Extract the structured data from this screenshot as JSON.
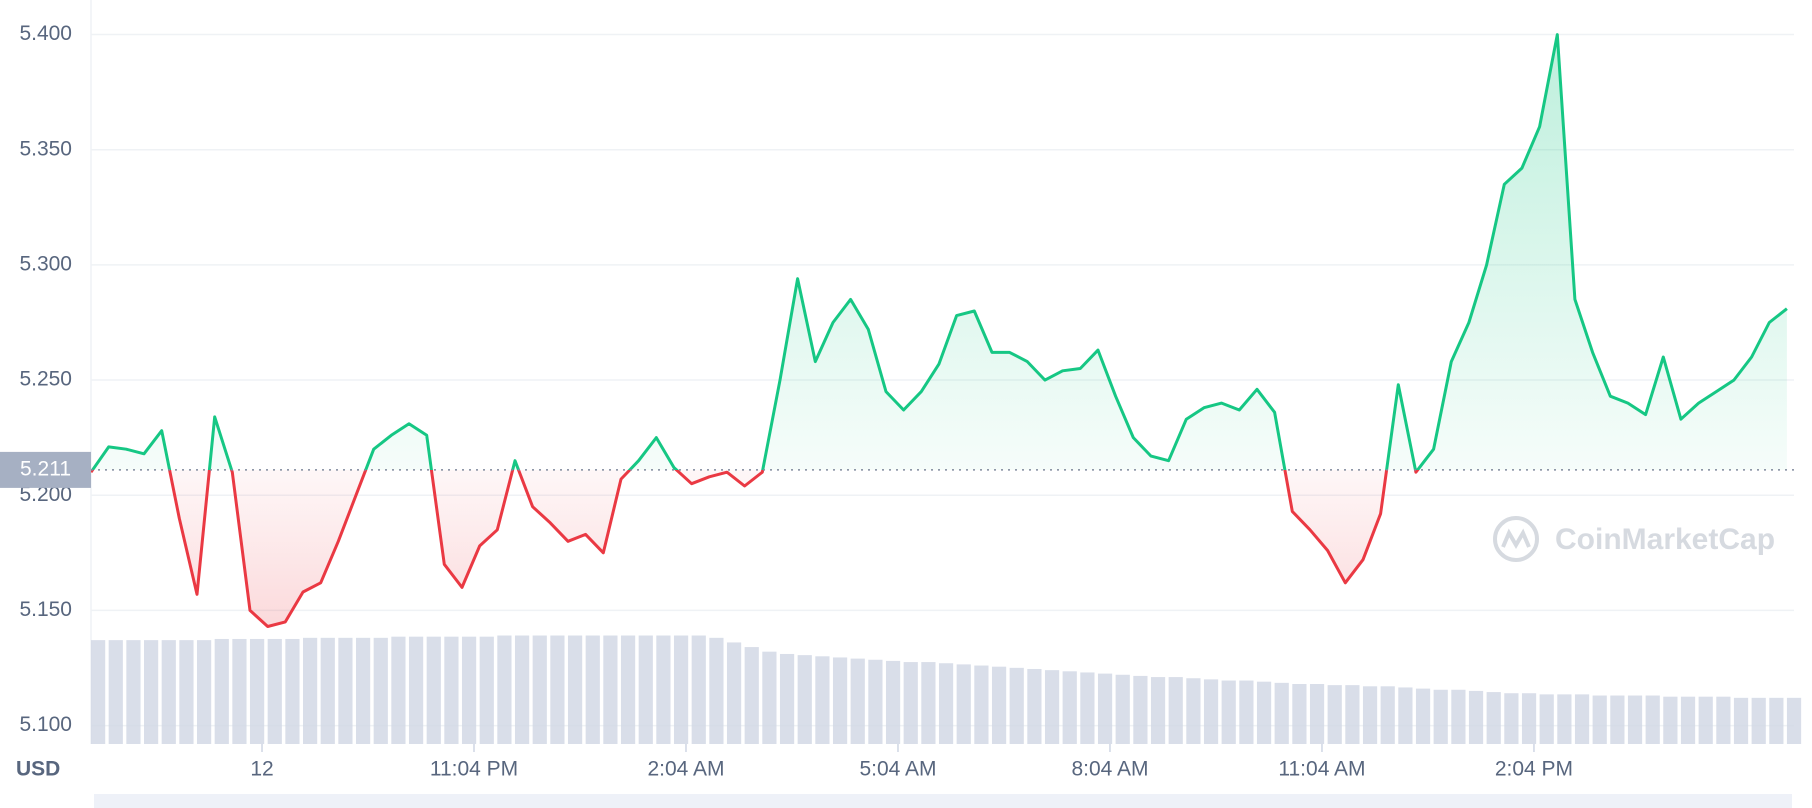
{
  "chart_data": {
    "type": "line",
    "currency": "USD",
    "watermark": "CoinMarketCap",
    "reference": {
      "value": 5.211,
      "label": "5.211"
    },
    "up_color": "#16c784",
    "down_color": "#ea3943",
    "volume_color": "#cfd6e4",
    "grid": true,
    "xlim": [
      0,
      24.1
    ],
    "xticks": [
      {
        "value": 2.42,
        "label": "12"
      },
      {
        "value": 5.42,
        "label": "11:04 PM"
      },
      {
        "value": 8.42,
        "label": "2:04 AM"
      },
      {
        "value": 11.42,
        "label": "5:04 AM"
      },
      {
        "value": 14.42,
        "label": "8:04 AM"
      },
      {
        "value": 17.42,
        "label": "11:04 AM"
      },
      {
        "value": 20.42,
        "label": "2:04 PM"
      }
    ],
    "ylim": [
      5.092,
      5.415
    ],
    "yticks": [
      {
        "value": 5.1,
        "label": "5.100"
      },
      {
        "value": 5.15,
        "label": "5.150"
      },
      {
        "value": 5.2,
        "label": "5.200"
      },
      {
        "value": 5.25,
        "label": "5.250"
      },
      {
        "value": 5.3,
        "label": "5.300"
      },
      {
        "value": 5.35,
        "label": "5.350"
      },
      {
        "value": 5.4,
        "label": "5.400"
      }
    ],
    "x": [
      0,
      0.25,
      0.5,
      0.75,
      1,
      1.25,
      1.5,
      1.75,
      2,
      2.25,
      2.5,
      2.75,
      3,
      3.25,
      3.5,
      3.75,
      4,
      4.25,
      4.5,
      4.75,
      5,
      5.25,
      5.5,
      5.75,
      6,
      6.25,
      6.5,
      6.75,
      7,
      7.25,
      7.5,
      7.75,
      8,
      8.25,
      8.5,
      8.75,
      9,
      9.25,
      9.5,
      9.75,
      10,
      10.25,
      10.5,
      10.75,
      11,
      11.25,
      11.5,
      11.75,
      12,
      12.25,
      12.5,
      12.75,
      13,
      13.25,
      13.5,
      13.75,
      14,
      14.25,
      14.5,
      14.75,
      15,
      15.25,
      15.5,
      15.75,
      16,
      16.25,
      16.5,
      16.75,
      17,
      17.25,
      17.5,
      17.75,
      18,
      18.25,
      18.5,
      18.75,
      19,
      19.25,
      19.5,
      19.75,
      20,
      20.25,
      20.5,
      20.75,
      21,
      21.25,
      21.5,
      21.75,
      22,
      22.25,
      22.5,
      22.75,
      23,
      23.25,
      23.5,
      23.75,
      24
    ],
    "values": [
      5.21,
      5.221,
      5.22,
      5.218,
      5.228,
      5.19,
      5.157,
      5.234,
      5.21,
      5.15,
      5.143,
      5.145,
      5.158,
      5.162,
      5.18,
      5.2,
      5.22,
      5.226,
      5.231,
      5.226,
      5.17,
      5.16,
      5.178,
      5.185,
      5.215,
      5.195,
      5.188,
      5.18,
      5.183,
      5.175,
      5.207,
      5.215,
      5.225,
      5.212,
      5.205,
      5.208,
      5.21,
      5.204,
      5.21,
      5.25,
      5.294,
      5.258,
      5.275,
      5.285,
      5.272,
      5.245,
      5.237,
      5.245,
      5.257,
      5.278,
      5.28,
      5.262,
      5.262,
      5.258,
      5.25,
      5.254,
      5.255,
      5.263,
      5.243,
      5.225,
      5.217,
      5.215,
      5.233,
      5.238,
      5.24,
      5.237,
      5.246,
      5.236,
      5.193,
      5.185,
      5.176,
      5.162,
      5.172,
      5.192,
      5.248,
      5.21,
      5.22,
      5.258,
      5.275,
      5.3,
      5.335,
      5.342,
      5.36,
      5.4,
      5.285,
      5.262,
      5.243,
      5.24,
      5.235,
      5.26,
      5.233,
      5.24,
      5.245,
      5.25,
      5.26,
      5.275,
      5.281
    ],
    "volume": [
      90,
      90,
      90,
      90,
      90,
      90,
      90,
      91,
      91,
      91,
      91,
      91,
      92,
      92,
      92,
      92,
      92,
      93,
      93,
      93,
      93,
      93,
      93,
      94,
      94,
      94,
      94,
      94,
      94,
      94,
      94,
      94,
      94,
      94,
      94,
      92,
      88,
      84,
      80,
      78,
      77,
      76,
      75,
      74,
      73,
      72,
      71,
      71,
      70,
      69,
      68,
      67,
      66,
      65,
      64,
      63,
      62,
      61,
      60,
      59,
      58,
      58,
      57,
      56,
      55,
      55,
      54,
      53,
      52,
      52,
      51,
      51,
      50,
      50,
      49,
      48,
      47,
      47,
      46,
      45,
      44,
      44,
      43,
      43,
      43,
      42,
      42,
      42,
      42,
      41,
      41,
      41,
      41,
      40,
      40,
      40,
      40
    ]
  }
}
